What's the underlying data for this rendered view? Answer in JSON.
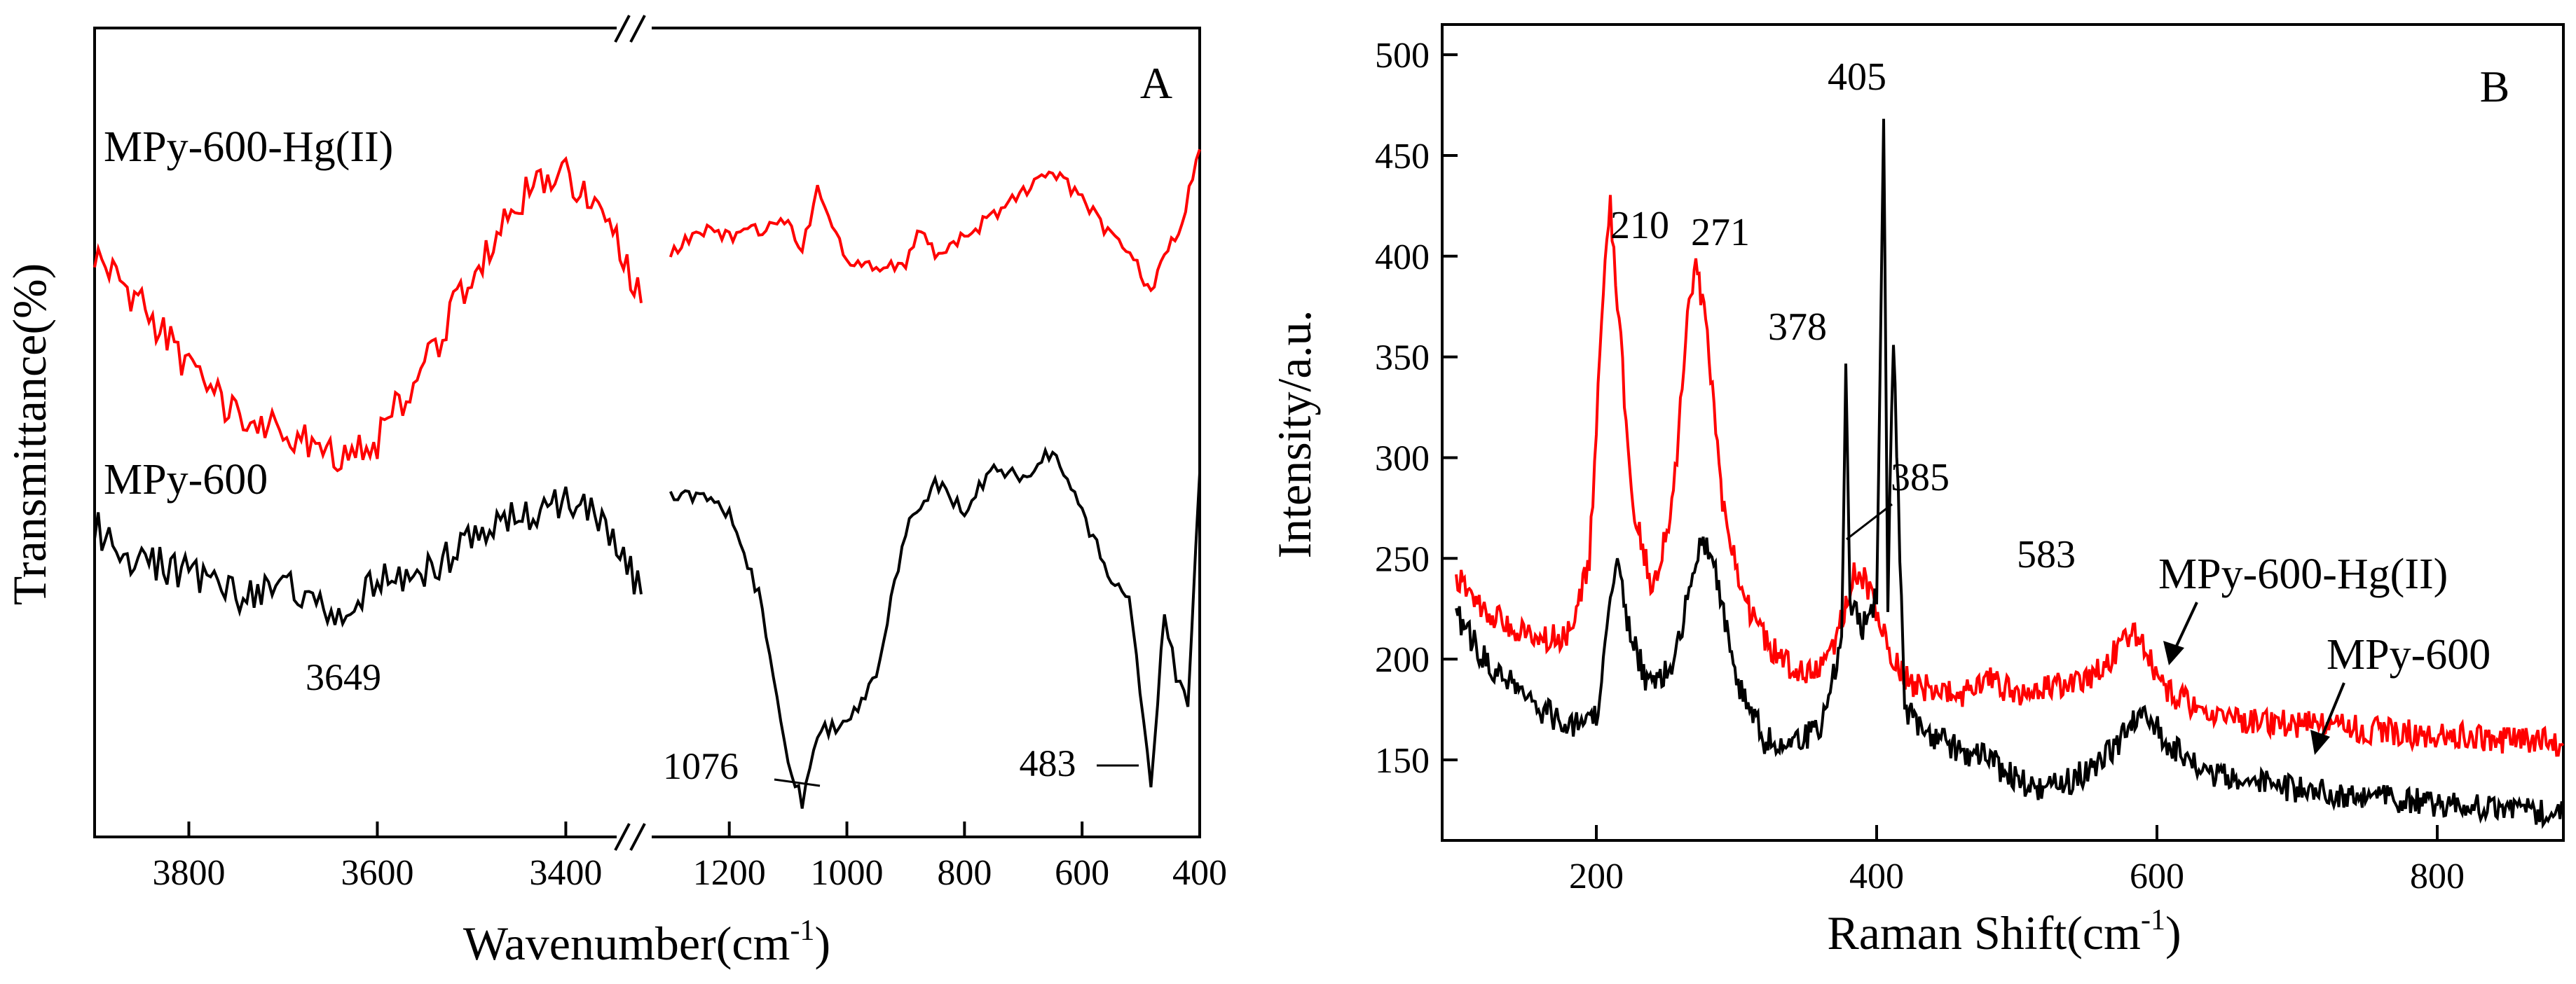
{
  "chart_data": [
    {
      "panel": "A",
      "type": "line",
      "xlabel": "Wavenumber(cm",
      "xlabel_sup": "-1",
      "xlabel_close": ")",
      "ylabel": "Transmittance(%)",
      "x_break": [
        3320,
        1320
      ],
      "xlim_left": [
        3900,
        3320
      ],
      "xlim_right": [
        1320,
        400
      ],
      "ticks_left": [
        "3800",
        "3600",
        "3400"
      ],
      "ticks_right": [
        "1200",
        "1000",
        "800",
        "600",
        "400"
      ],
      "series": [
        {
          "name": "MPy-600-Hg(II)",
          "color": "#ff0000",
          "x": [
            3900,
            3850,
            3800,
            3750,
            3700,
            3650,
            3600,
            3550,
            3500,
            3450,
            3400,
            3350,
            3320,
            1300,
            1250,
            1200,
            1150,
            1100,
            1076,
            1050,
            1000,
            950,
            900,
            880,
            850,
            800,
            750,
            700,
            650,
            600,
            550,
            500,
            483,
            460,
            430,
            400
          ],
          "y": [
            0.72,
            0.66,
            0.58,
            0.52,
            0.5,
            0.47,
            0.49,
            0.58,
            0.7,
            0.79,
            0.82,
            0.74,
            0.66,
            0.72,
            0.75,
            0.74,
            0.75,
            0.76,
            0.73,
            0.8,
            0.71,
            0.7,
            0.71,
            0.75,
            0.72,
            0.74,
            0.77,
            0.8,
            0.82,
            0.79,
            0.74,
            0.7,
            0.67,
            0.72,
            0.76,
            0.85
          ]
        },
        {
          "name": "MPy-600",
          "color": "#000000",
          "x": [
            3900,
            3850,
            3800,
            3750,
            3700,
            3649,
            3600,
            3550,
            3500,
            3450,
            3400,
            3350,
            3320,
            1300,
            1250,
            1200,
            1150,
            1100,
            1076,
            1050,
            1000,
            950,
            900,
            850,
            800,
            750,
            700,
            650,
            600,
            550,
            520,
            483,
            460,
            440,
            420,
            400
          ],
          "y": [
            0.38,
            0.34,
            0.33,
            0.3,
            0.31,
            0.27,
            0.31,
            0.33,
            0.37,
            0.4,
            0.42,
            0.38,
            0.3,
            0.42,
            0.42,
            0.4,
            0.3,
            0.1,
            0.04,
            0.13,
            0.14,
            0.2,
            0.38,
            0.44,
            0.4,
            0.46,
            0.44,
            0.48,
            0.4,
            0.32,
            0.3,
            0.06,
            0.28,
            0.2,
            0.16,
            0.45
          ]
        }
      ],
      "legend": [
        "MPy-600-Hg(II)",
        "MPy-600"
      ],
      "annotations": [
        "3649",
        "1076",
        "483"
      ],
      "panel_label": "A"
    },
    {
      "panel": "B",
      "type": "line",
      "xlabel": "Raman Shift(cm",
      "xlabel_sup": "-1",
      "xlabel_close": ")",
      "ylabel": "Intensity/a.u.",
      "xlim": [
        90,
        890
      ],
      "ylim": [
        110,
        515
      ],
      "xticks": [
        200,
        400,
        600,
        800
      ],
      "yticks": [
        150,
        200,
        250,
        300,
        350,
        400,
        450,
        500
      ],
      "series": [
        {
          "name": "MPy-600-Hg(II)",
          "color": "#ff0000",
          "x": [
            100,
            120,
            140,
            160,
            180,
            195,
            205,
            210,
            215,
            225,
            240,
            255,
            265,
            271,
            278,
            290,
            305,
            325,
            345,
            365,
            378,
            385,
            395,
            410,
            425,
            440,
            460,
            480,
            500,
            520,
            540,
            560,
            575,
            583,
            592,
            605,
            630,
            660,
            700,
            750,
            800,
            850,
            890
          ],
          "y": [
            240,
            225,
            215,
            210,
            212,
            250,
            380,
            425,
            380,
            280,
            235,
            280,
            370,
            395,
            370,
            280,
            230,
            205,
            192,
            200,
            225,
            245,
            235,
            200,
            188,
            185,
            182,
            190,
            183,
            185,
            188,
            195,
            208,
            212,
            205,
            185,
            175,
            170,
            168,
            165,
            162,
            160,
            158
          ]
        },
        {
          "name": "MPy-600",
          "color": "#000000",
          "x": [
            100,
            120,
            140,
            160,
            180,
            200,
            210,
            215,
            222,
            235,
            255,
            265,
            275,
            285,
            300,
            320,
            340,
            360,
            375,
            378,
            381,
            390,
            400,
            405,
            408,
            412,
            420,
            440,
            460,
            480,
            500,
            520,
            540,
            560,
            575,
            590,
            605,
            630,
            660,
            700,
            750,
            800,
            850,
            890
          ],
          "y": [
            222,
            200,
            188,
            175,
            168,
            170,
            230,
            250,
            220,
            190,
            195,
            230,
            262,
            245,
            190,
            160,
            158,
            165,
            210,
            350,
            230,
            215,
            230,
            470,
            230,
            360,
            175,
            162,
            155,
            150,
            140,
            135,
            140,
            150,
            160,
            178,
            160,
            145,
            140,
            135,
            132,
            128,
            125,
            123
          ]
        }
      ],
      "legend": [
        "MPy-600-Hg(II)",
        "MPy-600"
      ],
      "annotations": [
        "210",
        "271",
        "378",
        "405",
        "385",
        "583"
      ],
      "panel_label": "B"
    }
  ]
}
